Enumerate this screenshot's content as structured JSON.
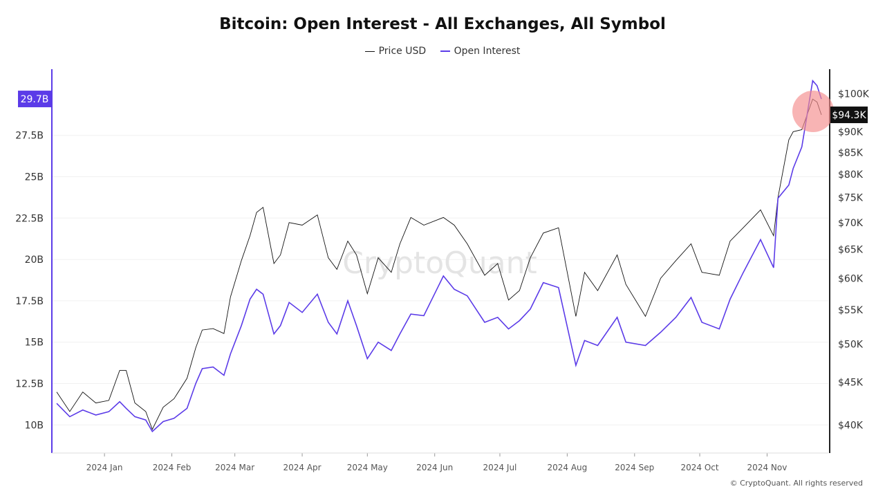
{
  "chart_data": {
    "type": "line",
    "title": "Bitcoin: Open Interest - All Exchanges, All Symbol",
    "legend": {
      "placement": "top-center",
      "entries": [
        "Price USD",
        "Open Interest"
      ]
    },
    "colors": {
      "price": "#111111",
      "open_interest": "#5b3be8",
      "highlight": "#f58c8c"
    },
    "x_tick_labels": [
      "2024 Jan",
      "2024 Feb",
      "2024 Mar",
      "2024 Apr",
      "2024 May",
      "2024 Jun",
      "2024 Jul",
      "2024 Aug",
      "2024 Sep",
      "2024 Oct",
      "2024 Nov"
    ],
    "x_tick_dates": [
      "2024-01-01",
      "2024-02-01",
      "2024-03-01",
      "2024-04-01",
      "2024-05-01",
      "2024-06-01",
      "2024-07-01",
      "2024-08-01",
      "2024-09-01",
      "2024-10-01",
      "2024-11-01"
    ],
    "xlim": [
      "2023-12-10",
      "2024-11-26"
    ],
    "left_axis": {
      "series": "Open Interest",
      "unit": "B",
      "scale": "linear",
      "range": [
        8.3,
        31.5
      ],
      "ticks": [
        10,
        12.5,
        15,
        17.5,
        20,
        22.5,
        25,
        27.5
      ],
      "tick_labels": [
        "10B",
        "12.5B",
        "15B",
        "17.5B",
        "20B",
        "22.5B",
        "25B",
        "27.5B"
      ],
      "current_label": "29.7B"
    },
    "right_axis": {
      "series": "Price USD",
      "unit": "K USD",
      "scale": "log",
      "range": [
        37,
        107
      ],
      "ticks": [
        40,
        45,
        50,
        55,
        60,
        65,
        70,
        75,
        80,
        85,
        90,
        100
      ],
      "tick_labels": [
        "$40K",
        "$45K",
        "$50K",
        "$55K",
        "$60K",
        "$65K",
        "$70K",
        "$75K",
        "$80K",
        "$85K",
        "$90K",
        "$100K"
      ],
      "current_label": "$94.3K"
    },
    "grid": true,
    "watermark": "CryptoQuant",
    "dates": [
      "2023-12-10",
      "2023-12-16",
      "2023-12-22",
      "2023-12-28",
      "2024-01-03",
      "2024-01-08",
      "2024-01-11",
      "2024-01-15",
      "2024-01-20",
      "2024-01-23",
      "2024-01-28",
      "2024-02-02",
      "2024-02-08",
      "2024-02-12",
      "2024-02-15",
      "2024-02-20",
      "2024-02-25",
      "2024-02-28",
      "2024-03-04",
      "2024-03-08",
      "2024-03-11",
      "2024-03-14",
      "2024-03-19",
      "2024-03-22",
      "2024-03-26",
      "2024-04-01",
      "2024-04-08",
      "2024-04-13",
      "2024-04-17",
      "2024-04-22",
      "2024-04-26",
      "2024-05-01",
      "2024-05-06",
      "2024-05-12",
      "2024-05-16",
      "2024-05-21",
      "2024-05-27",
      "2024-06-05",
      "2024-06-10",
      "2024-06-16",
      "2024-06-24",
      "2024-06-30",
      "2024-07-05",
      "2024-07-10",
      "2024-07-15",
      "2024-07-21",
      "2024-07-28",
      "2024-08-05",
      "2024-08-09",
      "2024-08-15",
      "2024-08-24",
      "2024-08-28",
      "2024-09-06",
      "2024-09-13",
      "2024-09-20",
      "2024-09-27",
      "2024-10-02",
      "2024-10-10",
      "2024-10-15",
      "2024-10-21",
      "2024-10-29",
      "2024-11-04",
      "2024-11-06",
      "2024-11-11",
      "2024-11-13",
      "2024-11-17",
      "2024-11-22",
      "2024-11-24",
      "2024-11-26"
    ],
    "series": [
      {
        "name": "Price USD",
        "axis": "right",
        "values": [
          43.8,
          41.5,
          43.8,
          42.5,
          42.8,
          46.5,
          46.5,
          42.5,
          41.5,
          39.5,
          42.0,
          43.0,
          45.5,
          49.5,
          52.0,
          52.2,
          51.5,
          57.0,
          63.0,
          67.5,
          72.0,
          73.0,
          62.5,
          64.0,
          70.0,
          69.5,
          71.5,
          63.5,
          61.5,
          66.5,
          64.0,
          57.5,
          63.5,
          61.0,
          66.0,
          71.0,
          69.5,
          71.0,
          69.5,
          66.0,
          60.5,
          62.5,
          56.5,
          58.0,
          63.5,
          68.0,
          69.0,
          54.0,
          61.0,
          58.0,
          64.0,
          59.0,
          54.0,
          60.0,
          63.0,
          66.0,
          61.0,
          60.5,
          66.5,
          69.0,
          72.5,
          67.5,
          75.0,
          88.0,
          90.0,
          90.5,
          98.5,
          97.7,
          94.3
        ]
      },
      {
        "name": "Open Interest",
        "axis": "left",
        "values": [
          11.3,
          10.5,
          10.9,
          10.6,
          10.8,
          11.4,
          11.0,
          10.5,
          10.3,
          9.6,
          10.2,
          10.4,
          11.0,
          12.5,
          13.4,
          13.5,
          13.0,
          14.3,
          16.0,
          17.6,
          18.2,
          17.9,
          15.5,
          16.0,
          17.4,
          16.8,
          17.9,
          16.2,
          15.5,
          17.5,
          16.0,
          14.0,
          15.0,
          14.5,
          15.5,
          16.7,
          16.6,
          19.0,
          18.2,
          17.8,
          16.2,
          16.5,
          15.8,
          16.3,
          17.0,
          18.6,
          18.3,
          13.6,
          15.1,
          14.8,
          16.5,
          15.0,
          14.8,
          15.6,
          16.5,
          17.7,
          16.2,
          15.8,
          17.6,
          19.2,
          21.2,
          19.5,
          23.7,
          24.5,
          25.5,
          26.8,
          30.8,
          30.5,
          29.7
        ]
      }
    ]
  },
  "footer": {
    "copyright": "© CryptoQuant. All rights reserved"
  }
}
